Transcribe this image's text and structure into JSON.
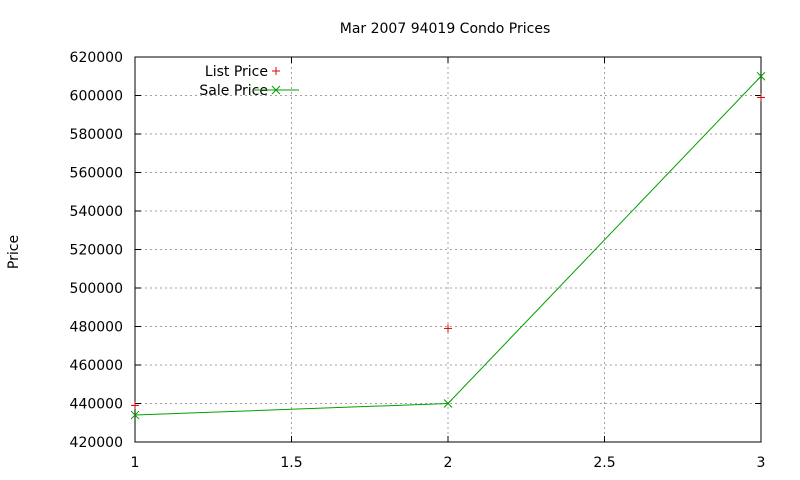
{
  "chart_data": {
    "type": "line",
    "title": "Mar 2007 94019 Condo Prices",
    "xlabel": "",
    "ylabel": "Price",
    "xlim": [
      1,
      3
    ],
    "ylim": [
      420000,
      620000
    ],
    "x_ticks": [
      1,
      1.5,
      2,
      2.5,
      3
    ],
    "x_tick_labels": [
      "1",
      "1.5",
      "2",
      "2.5",
      "3"
    ],
    "y_ticks": [
      420000,
      440000,
      460000,
      480000,
      500000,
      520000,
      540000,
      560000,
      580000,
      600000,
      620000
    ],
    "y_tick_labels": [
      "420000",
      "440000",
      "460000",
      "480000",
      "500000",
      "520000",
      "540000",
      "560000",
      "580000",
      "600000",
      "620000"
    ],
    "grid": true,
    "legend_position": "top-left",
    "series": [
      {
        "name": "List Price",
        "style": "points",
        "marker": "plus",
        "color": "#dd0000",
        "x": [
          1,
          2,
          3
        ],
        "values": [
          439000,
          479000,
          599000
        ]
      },
      {
        "name": "Sale Price",
        "style": "linespoints",
        "marker": "cross",
        "color": "#00a000",
        "x": [
          1,
          2,
          3
        ],
        "values": [
          434000,
          440000,
          610000
        ]
      }
    ]
  }
}
